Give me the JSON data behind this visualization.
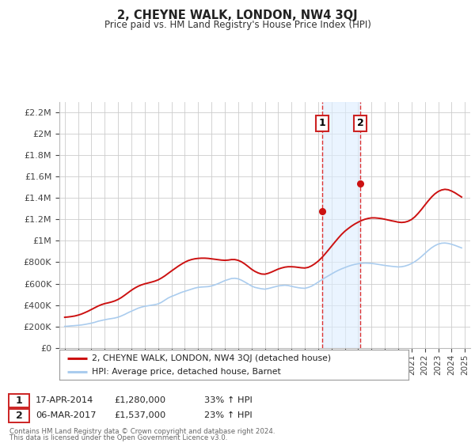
{
  "title": "2, CHEYNE WALK, LONDON, NW4 3QJ",
  "subtitle": "Price paid vs. HM Land Registry's House Price Index (HPI)",
  "ylabel_ticks": [
    "£0",
    "£200K",
    "£400K",
    "£600K",
    "£800K",
    "£1M",
    "£1.2M",
    "£1.4M",
    "£1.6M",
    "£1.8M",
    "£2M",
    "£2.2M"
  ],
  "ytick_values": [
    0,
    200000,
    400000,
    600000,
    800000,
    1000000,
    1200000,
    1400000,
    1600000,
    1800000,
    2000000,
    2200000
  ],
  "ylim": [
    0,
    2300000
  ],
  "xlim_start": 1994.6,
  "xlim_end": 2025.4,
  "background_color": "#ffffff",
  "grid_color": "#cccccc",
  "hpi_color": "#aaccee",
  "price_color": "#cc1111",
  "sale1_year": 2014.29,
  "sale1_price": 1280000,
  "sale1_label": "1",
  "sale1_date": "17-APR-2014",
  "sale1_price_str": "£1,280,000",
  "sale1_pct": "33% ↑ HPI",
  "sale2_year": 2017.17,
  "sale2_price": 1537000,
  "sale2_label": "2",
  "sale2_date": "06-MAR-2017",
  "sale2_price_str": "£1,537,000",
  "sale2_pct": "23% ↑ HPI",
  "legend_line1": "2, CHEYNE WALK, LONDON, NW4 3QJ (detached house)",
  "legend_line2": "HPI: Average price, detached house, Barnet",
  "footnote1": "Contains HM Land Registry data © Crown copyright and database right 2024.",
  "footnote2": "This data is licensed under the Open Government Licence v3.0.",
  "span_color": "#ddeeff",
  "span_alpha": 0.6,
  "hpi_years": [
    1995,
    1995.25,
    1995.5,
    1995.75,
    1996,
    1996.25,
    1996.5,
    1996.75,
    1997,
    1997.25,
    1997.5,
    1997.75,
    1998,
    1998.25,
    1998.5,
    1998.75,
    1999,
    1999.25,
    1999.5,
    1999.75,
    2000,
    2000.25,
    2000.5,
    2000.75,
    2001,
    2001.25,
    2001.5,
    2001.75,
    2002,
    2002.25,
    2002.5,
    2002.75,
    2003,
    2003.25,
    2003.5,
    2003.75,
    2004,
    2004.25,
    2004.5,
    2004.75,
    2005,
    2005.25,
    2005.5,
    2005.75,
    2006,
    2006.25,
    2006.5,
    2006.75,
    2007,
    2007.25,
    2007.5,
    2007.75,
    2008,
    2008.25,
    2008.5,
    2008.75,
    2009,
    2009.25,
    2009.5,
    2009.75,
    2010,
    2010.25,
    2010.5,
    2010.75,
    2011,
    2011.25,
    2011.5,
    2011.75,
    2012,
    2012.25,
    2012.5,
    2012.75,
    2013,
    2013.25,
    2013.5,
    2013.75,
    2014,
    2014.25,
    2014.5,
    2014.75,
    2015,
    2015.25,
    2015.5,
    2015.75,
    2016,
    2016.25,
    2016.5,
    2016.75,
    2017,
    2017.25,
    2017.5,
    2017.75,
    2018,
    2018.25,
    2018.5,
    2018.75,
    2019,
    2019.25,
    2019.5,
    2019.75,
    2020,
    2020.25,
    2020.5,
    2020.75,
    2021,
    2021.25,
    2021.5,
    2021.75,
    2022,
    2022.25,
    2022.5,
    2022.75,
    2023,
    2023.25,
    2023.5,
    2023.75,
    2024,
    2024.25,
    2024.5,
    2024.75
  ],
  "hpi_values": [
    200000,
    202000,
    205000,
    207000,
    210000,
    213000,
    218000,
    224000,
    230000,
    238000,
    248000,
    255000,
    262000,
    268000,
    273000,
    278000,
    286000,
    298000,
    312000,
    328000,
    342000,
    356000,
    370000,
    380000,
    388000,
    393000,
    398000,
    403000,
    410000,
    425000,
    445000,
    465000,
    480000,
    492000,
    505000,
    518000,
    528000,
    538000,
    548000,
    558000,
    565000,
    568000,
    570000,
    572000,
    578000,
    588000,
    600000,
    614000,
    628000,
    638000,
    648000,
    650000,
    645000,
    632000,
    615000,
    597000,
    578000,
    565000,
    558000,
    552000,
    548000,
    554000,
    562000,
    570000,
    578000,
    582000,
    585000,
    582000,
    575000,
    568000,
    562000,
    558000,
    556000,
    564000,
    576000,
    594000,
    614000,
    634000,
    654000,
    672000,
    690000,
    708000,
    724000,
    738000,
    750000,
    762000,
    772000,
    780000,
    786000,
    790000,
    792000,
    791000,
    789000,
    785000,
    780000,
    775000,
    770000,
    766000,
    762000,
    759000,
    756000,
    758000,
    764000,
    774000,
    788000,
    806000,
    828000,
    854000,
    882000,
    910000,
    935000,
    955000,
    970000,
    978000,
    980000,
    976000,
    968000,
    958000,
    946000,
    934000
  ],
  "price_years": [
    1995,
    1995.25,
    1995.5,
    1995.75,
    1996,
    1996.25,
    1996.5,
    1996.75,
    1997,
    1997.25,
    1997.5,
    1997.75,
    1998,
    1998.25,
    1998.5,
    1998.75,
    1999,
    1999.25,
    1999.5,
    1999.75,
    2000,
    2000.25,
    2000.5,
    2000.75,
    2001,
    2001.25,
    2001.5,
    2001.75,
    2002,
    2002.25,
    2002.5,
    2002.75,
    2003,
    2003.25,
    2003.5,
    2003.75,
    2004,
    2004.25,
    2004.5,
    2004.75,
    2005,
    2005.25,
    2005.5,
    2005.75,
    2006,
    2006.25,
    2006.5,
    2006.75,
    2007,
    2007.25,
    2007.5,
    2007.75,
    2008,
    2008.25,
    2008.5,
    2008.75,
    2009,
    2009.25,
    2009.5,
    2009.75,
    2010,
    2010.25,
    2010.5,
    2010.75,
    2011,
    2011.25,
    2011.5,
    2011.75,
    2012,
    2012.25,
    2012.5,
    2012.75,
    2013,
    2013.25,
    2013.5,
    2013.75,
    2014,
    2014.25,
    2014.5,
    2014.75,
    2015,
    2015.25,
    2015.5,
    2015.75,
    2016,
    2016.25,
    2016.5,
    2016.75,
    2017,
    2017.25,
    2017.5,
    2017.75,
    2018,
    2018.25,
    2018.5,
    2018.75,
    2019,
    2019.25,
    2019.5,
    2019.75,
    2020,
    2020.25,
    2020.5,
    2020.75,
    2021,
    2021.25,
    2021.5,
    2021.75,
    2022,
    2022.25,
    2022.5,
    2022.75,
    2023,
    2023.25,
    2023.5,
    2023.75,
    2024,
    2024.25,
    2024.5,
    2024.75
  ],
  "price_values": [
    285000,
    288000,
    292000,
    297000,
    305000,
    315000,
    328000,
    342000,
    358000,
    374000,
    390000,
    403000,
    413000,
    420000,
    428000,
    438000,
    452000,
    470000,
    492000,
    515000,
    538000,
    558000,
    575000,
    588000,
    598000,
    606000,
    614000,
    623000,
    635000,
    652000,
    672000,
    695000,
    718000,
    740000,
    762000,
    782000,
    800000,
    815000,
    825000,
    832000,
    836000,
    838000,
    838000,
    836000,
    832000,
    828000,
    824000,
    820000,
    818000,
    820000,
    825000,
    825000,
    818000,
    804000,
    784000,
    760000,
    735000,
    715000,
    700000,
    690000,
    688000,
    696000,
    708000,
    722000,
    736000,
    746000,
    754000,
    758000,
    758000,
    756000,
    752000,
    748000,
    746000,
    752000,
    766000,
    786000,
    810000,
    840000,
    875000,
    912000,
    950000,
    988000,
    1025000,
    1060000,
    1090000,
    1115000,
    1138000,
    1158000,
    1175000,
    1190000,
    1202000,
    1210000,
    1215000,
    1215000,
    1212000,
    1208000,
    1202000,
    1195000,
    1188000,
    1182000,
    1175000,
    1172000,
    1175000,
    1184000,
    1200000,
    1225000,
    1258000,
    1295000,
    1335000,
    1374000,
    1410000,
    1440000,
    1462000,
    1476000,
    1482000,
    1478000,
    1466000,
    1450000,
    1430000,
    1410000
  ]
}
